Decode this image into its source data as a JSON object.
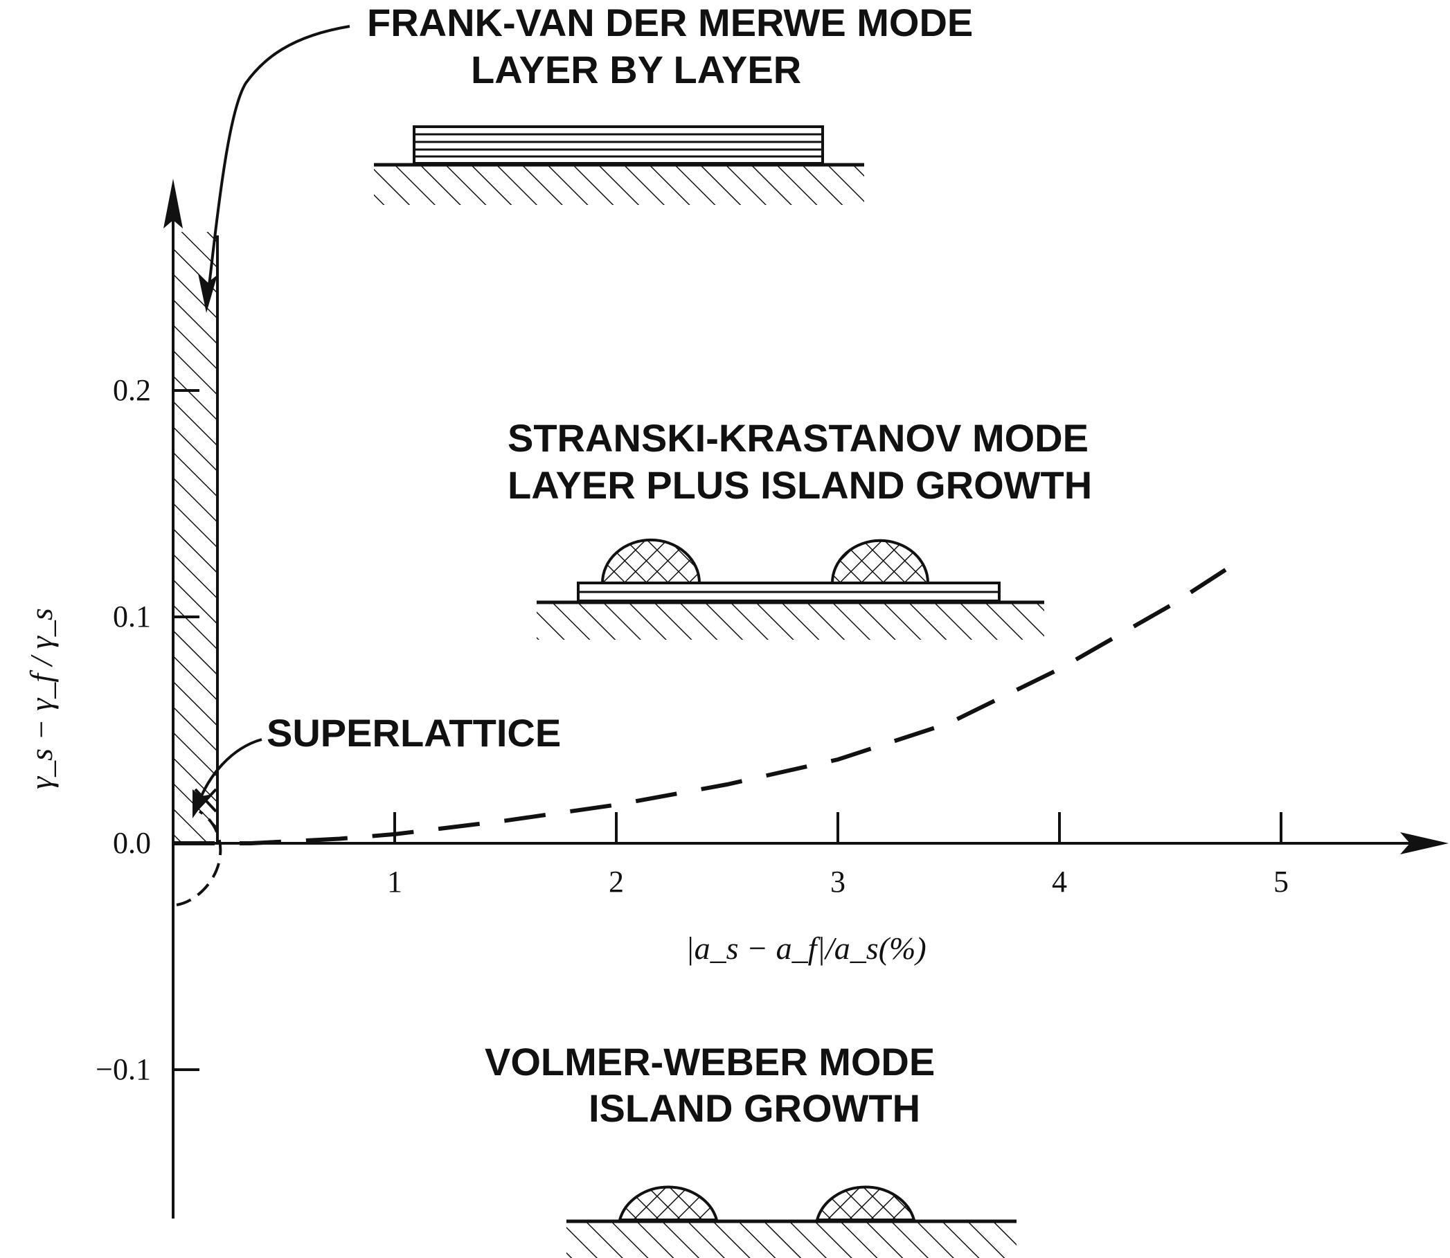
{
  "chart_data": {
    "type": "line",
    "title": "",
    "xlabel": "|a_s − a_f|/a_s(%)",
    "ylabel": "γ_s − γ_f / γ_s",
    "x_ticks": [
      "1",
      "2",
      "3",
      "4",
      "5"
    ],
    "y_ticks": [
      "0.2",
      "0.1",
      "0.0",
      "−0.1"
    ],
    "xlim": [
      0,
      5.8
    ],
    "ylim": [
      -0.17,
      0.3
    ],
    "grid": false,
    "series": [
      {
        "style": "dashed",
        "x": [
          0.0,
          0.35,
          0.75,
          1.0,
          1.5,
          2.0,
          2.5,
          3.0,
          3.5,
          4.0,
          4.5,
          4.8
        ],
        "y": [
          0.0,
          0.0,
          0.002,
          0.004,
          0.01,
          0.017,
          0.026,
          0.037,
          0.053,
          0.077,
          0.105,
          0.124
        ]
      }
    ],
    "annotations": [
      {
        "lines": [
          "FRANK-VAN DER MERWE MODE",
          "LAYER BY LAYER"
        ]
      },
      {
        "lines": [
          "STRANSKI-KRASTANOV MODE",
          "LAYER PLUS ISLAND GROWTH"
        ]
      },
      {
        "lines": [
          "VOLMER-WEBER MODE",
          "ISLAND GROWTH"
        ]
      },
      {
        "lines": [
          "SUPERLATTICE"
        ]
      }
    ],
    "colors": {
      "ink": "#111111",
      "background": "#ffffff"
    }
  }
}
